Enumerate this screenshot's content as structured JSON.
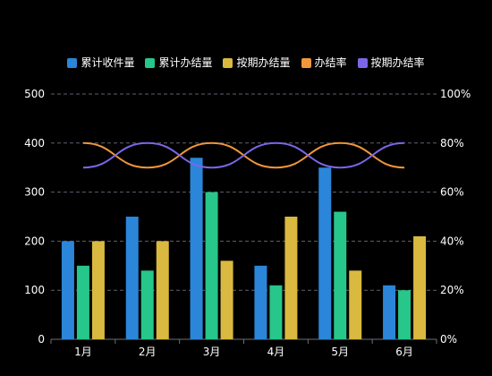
{
  "chart_data": {
    "type": "bar",
    "title": "",
    "categories": [
      "1月",
      "2月",
      "3月",
      "4月",
      "5月",
      "6月"
    ],
    "series": [
      {
        "name": "累计收件量",
        "type": "bar",
        "color": "#2b86d9",
        "values": [
          200,
          250,
          370,
          150,
          350,
          110
        ]
      },
      {
        "name": "累计办结量",
        "type": "bar",
        "color": "#27c68a",
        "values": [
          150,
          140,
          300,
          110,
          260,
          100
        ]
      },
      {
        "name": "按期办结量",
        "type": "bar",
        "color": "#d9b93f",
        "values": [
          200,
          200,
          160,
          250,
          140,
          210
        ]
      },
      {
        "name": "办结率",
        "type": "line",
        "axis": "right",
        "color": "#f0963b",
        "values": [
          80,
          70,
          80,
          70,
          80,
          70
        ]
      },
      {
        "name": "按期办结率",
        "type": "line",
        "axis": "right",
        "color": "#7b66e8",
        "values": [
          70,
          80,
          70,
          80,
          70,
          80
        ]
      }
    ],
    "y_left": {
      "min": 0,
      "max": 500,
      "ticks": [
        0,
        100,
        200,
        300,
        400,
        500
      ]
    },
    "y_right": {
      "min": 0,
      "max": 100,
      "ticks": [
        "0%",
        "20%",
        "40%",
        "60%",
        "80%",
        "100%"
      ]
    },
    "grid": true,
    "legend_position": "top-center"
  }
}
